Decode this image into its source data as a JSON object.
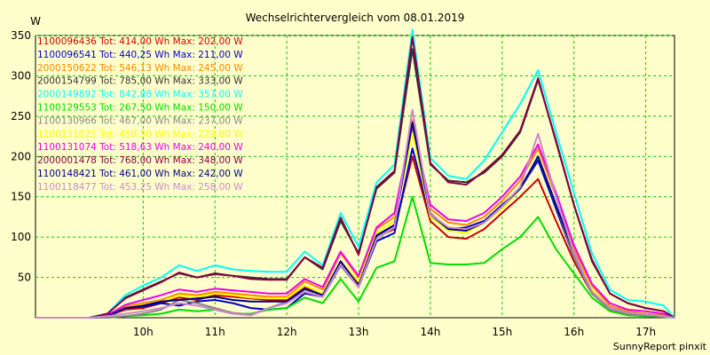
{
  "chart_data": {
    "type": "line",
    "title": "Wechselrichtervergleich vom 08.01.2019",
    "ylabel": "W",
    "xlabel": "",
    "footer": "SunnyReport pinxit",
    "ylim": [
      0,
      350
    ],
    "xlim": [
      8.5,
      17.4
    ],
    "grid": true,
    "legend_placement": "top-left",
    "yticks": [
      50,
      100,
      150,
      200,
      250,
      300,
      350
    ],
    "xticks": [
      {
        "label": "10h",
        "value": 10
      },
      {
        "label": "11h",
        "value": 11
      },
      {
        "label": "12h",
        "value": 12
      },
      {
        "label": "13h",
        "value": 13
      },
      {
        "label": "14h",
        "value": 14
      },
      {
        "label": "15h",
        "value": 15
      },
      {
        "label": "16h",
        "value": 16
      },
      {
        "label": "17h",
        "value": 17
      }
    ],
    "x": [
      8.5,
      8.75,
      9.0,
      9.25,
      9.5,
      9.75,
      10.0,
      10.25,
      10.5,
      10.75,
      11.0,
      11.25,
      11.5,
      11.75,
      12.0,
      12.25,
      12.5,
      12.75,
      13.0,
      13.25,
      13.5,
      13.75,
      14.0,
      14.25,
      14.5,
      14.75,
      15.0,
      15.25,
      15.5,
      15.75,
      16.0,
      16.25,
      16.5,
      16.75,
      17.0,
      17.25,
      17.4
    ],
    "series": [
      {
        "id": "1100096436",
        "legend": "1100096436 Tot: 414,00 Wh Max: 202,00 W",
        "color": "#cc0000",
        "values": [
          0,
          0,
          0,
          0,
          2,
          10,
          12,
          18,
          25,
          22,
          28,
          26,
          24,
          22,
          22,
          38,
          28,
          70,
          42,
          100,
          110,
          200,
          120,
          100,
          98,
          110,
          130,
          150,
          172,
          120,
          70,
          30,
          10,
          5,
          3,
          2,
          0
        ]
      },
      {
        "id": "1100096541",
        "legend": "1100096541 Tot: 440,25 Wh Max: 211,00 W",
        "color": "#0000cc",
        "values": [
          0,
          0,
          0,
          0,
          2,
          12,
          14,
          18,
          15,
          20,
          22,
          18,
          12,
          10,
          12,
          30,
          26,
          65,
          38,
          95,
          105,
          210,
          125,
          110,
          112,
          120,
          140,
          160,
          195,
          135,
          75,
          30,
          12,
          6,
          4,
          2,
          0
        ]
      },
      {
        "id": "2000150622",
        "legend": "2000150622 Tot: 546,13 Wh Max: 245,00 W",
        "color": "#ff8800",
        "values": [
          0,
          0,
          0,
          0,
          2,
          14,
          18,
          22,
          30,
          28,
          32,
          30,
          28,
          26,
          26,
          45,
          35,
          80,
          50,
          110,
          125,
          245,
          135,
          118,
          115,
          125,
          145,
          170,
          210,
          150,
          85,
          40,
          15,
          8,
          5,
          3,
          0
        ]
      },
      {
        "id": "2000154799",
        "legend": "2000154799 Tot: 785,00 Wh Max: 333,00 W",
        "color": "#333333",
        "values": [
          0,
          0,
          0,
          0,
          5,
          25,
          35,
          45,
          55,
          50,
          55,
          52,
          50,
          48,
          48,
          75,
          60,
          120,
          80,
          160,
          180,
          333,
          190,
          170,
          168,
          180,
          200,
          230,
          295,
          220,
          140,
          70,
          30,
          18,
          12,
          8,
          0
        ]
      },
      {
        "id": "2000149892",
        "legend": "2000149892 Tot: 842,88 Wh Max: 357,00 W",
        "color": "#00ffff",
        "values": [
          0,
          0,
          0,
          0,
          5,
          28,
          40,
          50,
          65,
          58,
          65,
          60,
          58,
          57,
          57,
          82,
          65,
          130,
          88,
          168,
          190,
          357,
          198,
          176,
          172,
          195,
          230,
          265,
          307,
          230,
          155,
          80,
          35,
          22,
          20,
          15,
          0
        ]
      },
      {
        "id": "1100129553",
        "legend": "1100129553 Tot: 267,50 Wh Max: 150,00 W",
        "color": "#00dd00",
        "values": [
          0,
          0,
          0,
          0,
          0,
          2,
          3,
          5,
          10,
          8,
          10,
          5,
          5,
          10,
          12,
          25,
          18,
          48,
          20,
          62,
          70,
          150,
          68,
          66,
          66,
          68,
          85,
          100,
          125,
          85,
          55,
          25,
          8,
          3,
          2,
          1,
          0
        ]
      },
      {
        "id": "1100130966",
        "legend": "1100130966 Tot: 467,00 Wh Max: 237,00 W",
        "color": "#888888",
        "values": [
          0,
          0,
          0,
          0,
          0,
          2,
          5,
          10,
          22,
          18,
          12,
          6,
          4,
          12,
          20,
          35,
          28,
          68,
          40,
          100,
          115,
          237,
          130,
          110,
          108,
          118,
          138,
          160,
          200,
          140,
          75,
          30,
          10,
          5,
          3,
          2,
          0
        ]
      },
      {
        "id": "1100131025",
        "legend": "1100131025 Tot: 450,50 Wh Max: 229,00 W",
        "color": "#ffff00",
        "values": [
          0,
          0,
          0,
          0,
          2,
          12,
          16,
          20,
          28,
          25,
          30,
          28,
          25,
          24,
          24,
          40,
          30,
          70,
          45,
          105,
          120,
          229,
          125,
          108,
          105,
          118,
          135,
          160,
          200,
          140,
          80,
          35,
          12,
          6,
          4,
          2,
          0
        ]
      },
      {
        "id": "1100131074",
        "legend": "1100131074 Tot: 518,63 Wh Max: 240,00 W",
        "color": "#ee00ee",
        "values": [
          0,
          0,
          0,
          0,
          3,
          16,
          22,
          28,
          35,
          32,
          36,
          34,
          32,
          30,
          30,
          48,
          38,
          82,
          52,
          112,
          130,
          240,
          140,
          122,
          120,
          130,
          150,
          175,
          215,
          155,
          90,
          42,
          18,
          10,
          8,
          5,
          0
        ]
      },
      {
        "id": "2000001478",
        "legend": "2000001478 Tot: 768,00 Wh Max: 348,00 W",
        "color": "#880044",
        "values": [
          0,
          0,
          0,
          0,
          5,
          24,
          34,
          44,
          56,
          50,
          54,
          52,
          48,
          47,
          47,
          75,
          62,
          124,
          78,
          162,
          182,
          348,
          192,
          168,
          165,
          182,
          202,
          232,
          297,
          218,
          140,
          72,
          30,
          18,
          12,
          8,
          0
        ]
      },
      {
        "id": "1100148421",
        "legend": "1100148421 Tot: 461,00 Wh Max: 242,00 W",
        "color": "#000088",
        "values": [
          0,
          0,
          0,
          0,
          2,
          12,
          15,
          20,
          22,
          24,
          26,
          22,
          20,
          20,
          20,
          36,
          28,
          70,
          40,
          102,
          115,
          242,
          128,
          110,
          108,
          118,
          138,
          160,
          200,
          140,
          80,
          32,
          12,
          6,
          4,
          2,
          0
        ]
      },
      {
        "id": "1100118477",
        "legend": "1100118477 Tot: 453,25 Wh Max: 258,00 W",
        "color": "#cc88cc",
        "values": [
          0,
          0,
          0,
          0,
          2,
          5,
          8,
          12,
          18,
          15,
          10,
          5,
          3,
          12,
          18,
          32,
          26,
          66,
          38,
          98,
          112,
          258,
          128,
          112,
          110,
          118,
          138,
          162,
          228,
          150,
          80,
          32,
          12,
          6,
          4,
          2,
          0
        ]
      }
    ]
  }
}
